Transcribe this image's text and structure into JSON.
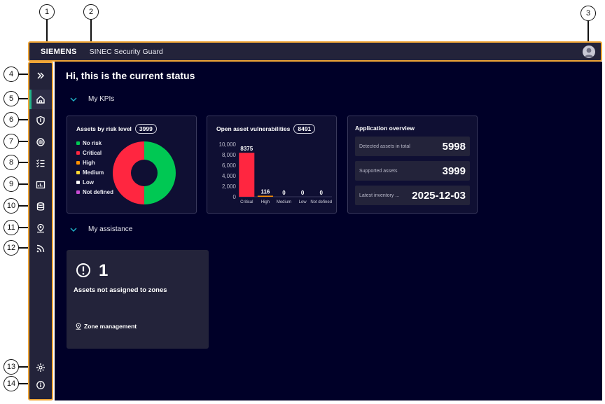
{
  "header": {
    "brand": "SIEMENS",
    "app_title": "SINEC Security Guard"
  },
  "callouts": [
    "1",
    "2",
    "3",
    "4",
    "5",
    "6",
    "7",
    "8",
    "9",
    "10",
    "11",
    "12",
    "13",
    "14"
  ],
  "sidebar": {
    "items": [
      {
        "icon": "double-chevron-right-icon"
      },
      {
        "icon": "home-icon",
        "active": true
      },
      {
        "icon": "shield-icon"
      },
      {
        "icon": "network-icon"
      },
      {
        "icon": "checklist-icon"
      },
      {
        "icon": "chart-icon"
      },
      {
        "icon": "database-icon"
      },
      {
        "icon": "location-pin-icon"
      },
      {
        "icon": "feed-icon"
      },
      {
        "icon": "gear-icon"
      },
      {
        "icon": "info-icon"
      }
    ]
  },
  "main": {
    "greeting": "Hi, this is the current status",
    "kpi_section": "My KPIs",
    "assistance_section": "My assistance"
  },
  "risk_card": {
    "title": "Assets by risk level",
    "count": "3999",
    "legend": [
      {
        "label": "No risk",
        "color": "#00c853"
      },
      {
        "label": "Critical",
        "color": "#ff2640"
      },
      {
        "label": "High",
        "color": "#ff9000"
      },
      {
        "label": "Medium",
        "color": "#ffd732"
      },
      {
        "label": "Low",
        "color": "#ffffff"
      },
      {
        "label": "Not defined",
        "color": "#c84bd4"
      }
    ]
  },
  "vuln_card": {
    "title": "Open asset vulnerabilities",
    "count": "8491"
  },
  "app_overview": {
    "title": "Application overview",
    "rows": [
      {
        "label": "Detected assets in total",
        "value": "5998"
      },
      {
        "label": "Supported assets",
        "value": "3999"
      },
      {
        "label": "Latest inventory ...",
        "value": "2025-12-03"
      }
    ]
  },
  "assistance": {
    "count": "1",
    "title": "Assets not assigned to zones",
    "link": "Zone management"
  },
  "chart_data": [
    {
      "type": "pie",
      "title": "Assets by risk level",
      "categories": [
        "No risk",
        "Critical",
        "High",
        "Medium",
        "Low",
        "Not defined"
      ],
      "values": [
        50,
        50,
        0,
        0,
        0,
        0
      ],
      "colors": [
        "#00c853",
        "#ff2640",
        "#ff9000",
        "#ffd732",
        "#ffffff",
        "#c84bd4"
      ],
      "donut": true
    },
    {
      "type": "bar",
      "title": "Open asset vulnerabilities",
      "categories": [
        "Critical",
        "High",
        "Medium",
        "Low",
        "Not defined"
      ],
      "values": [
        8375,
        116,
        0,
        0,
        0
      ],
      "data_labels": [
        "8375",
        "116",
        "0",
        "0",
        "0"
      ],
      "yticks": [
        "10,000",
        "8,000",
        "6,000",
        "4,000",
        "2,000",
        "0"
      ],
      "ylim": [
        0,
        10000
      ],
      "colors": [
        "#ff2640",
        "#ff9000",
        "#ffd732",
        "#ffffff",
        "#c84bd4"
      ]
    }
  ]
}
